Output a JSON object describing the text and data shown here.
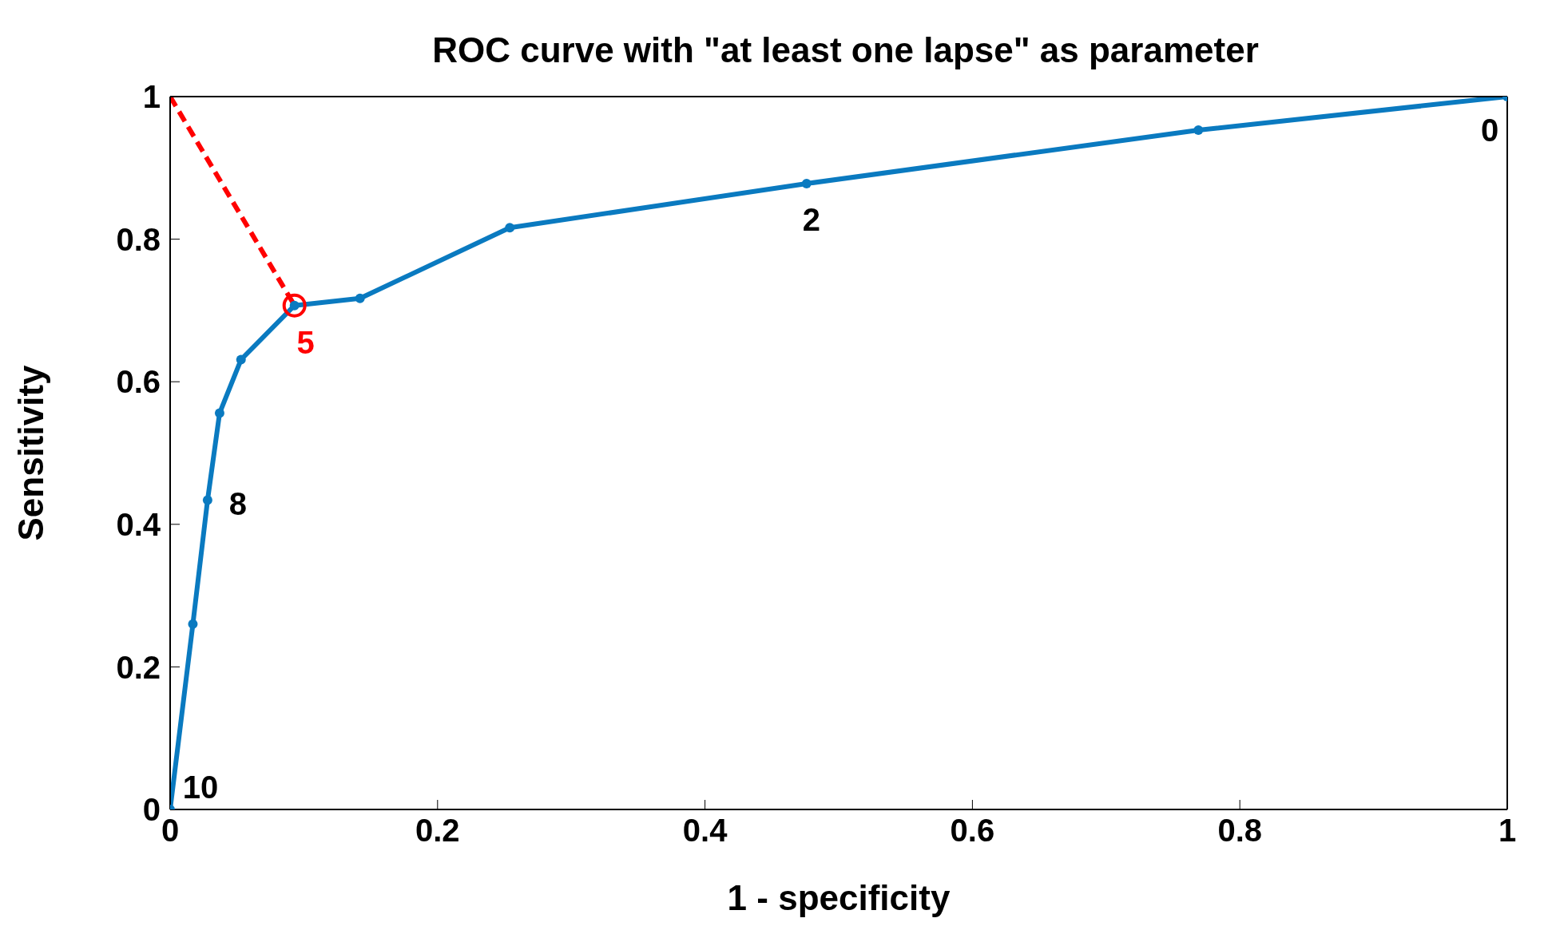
{
  "chart_data": {
    "type": "line",
    "title": "ROC curve with \"at least one lapse\" as parameter",
    "xlabel": "1 - specificity",
    "ylabel": "Sensitivity",
    "xlim": [
      0,
      1
    ],
    "ylim": [
      0,
      1
    ],
    "xticks": [
      0,
      0.2,
      0.4,
      0.6,
      0.8,
      1
    ],
    "yticks": [
      0,
      0.2,
      0.4,
      0.6,
      0.8,
      1
    ],
    "grid": false,
    "series": [
      {
        "color": "#0a7ac0",
        "marker": "circle",
        "line_style": "solid",
        "x": [
          0,
          0.017,
          0.028,
          0.037,
          0.053,
          0.093,
          0.142,
          0.254,
          0.476,
          0.769,
          1
        ],
        "values": [
          0,
          0.26,
          0.434,
          0.556,
          0.631,
          0.707,
          0.717,
          0.816,
          0.878,
          0.953,
          1
        ]
      },
      {
        "type": "line",
        "color": "#ff0000",
        "marker": "none",
        "line_style": "dashed",
        "x": [
          0,
          0.093
        ],
        "values": [
          1,
          0.707
        ]
      },
      {
        "type": "scatter",
        "color": "#ff0000",
        "marker": "circle",
        "x": [
          0.093
        ],
        "values": [
          0.707
        ]
      }
    ],
    "annotations": [
      {
        "text": "10",
        "x": 0,
        "y": 0
      },
      {
        "text": "8",
        "x": 0.028,
        "y": 0.434
      },
      {
        "text": "5",
        "x": 0.093,
        "y": 0.707
      },
      {
        "text": "2",
        "x": 0.476,
        "y": 0.878
      },
      {
        "text": "0",
        "x": 1,
        "y": 1
      }
    ]
  }
}
